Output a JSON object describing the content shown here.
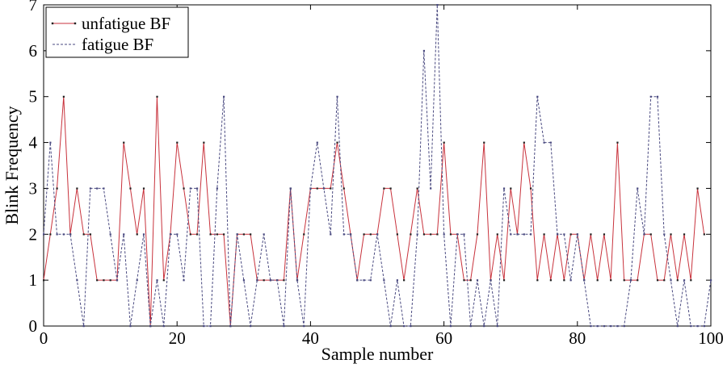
{
  "chart_data": {
    "type": "line",
    "title": "",
    "xlabel": "Sample number",
    "ylabel": "Blink Frequency",
    "xlim": [
      0,
      100
    ],
    "ylim": [
      0,
      7
    ],
    "grid": false,
    "legend_position": "top-left",
    "x_ticks": [
      0,
      20,
      40,
      60,
      80,
      100
    ],
    "y_ticks": [
      0,
      1,
      2,
      3,
      4,
      5,
      6,
      7
    ],
    "x_tick_labels": [
      "0",
      "20",
      "40",
      "60",
      "80",
      "100"
    ],
    "y_tick_labels": [
      "0",
      "1",
      "2",
      "3",
      "4",
      "5",
      "6",
      "7"
    ],
    "series": [
      {
        "name": "unfatigue BF",
        "style": "solid-marker",
        "color": "#c8323c",
        "marker_color": "#222222",
        "x": [
          0,
          1,
          2,
          3,
          4,
          5,
          6,
          7,
          8,
          9,
          10,
          11,
          12,
          13,
          14,
          15,
          16,
          17,
          18,
          19,
          20,
          21,
          22,
          23,
          24,
          25,
          26,
          27,
          28,
          29,
          30,
          31,
          32,
          33,
          34,
          35,
          36,
          37,
          38,
          39,
          40,
          41,
          42,
          43,
          44,
          45,
          46,
          47,
          48,
          49,
          50,
          51,
          52,
          53,
          54,
          55,
          56,
          57,
          58,
          59,
          60,
          61,
          62,
          63,
          64,
          65,
          66,
          67,
          68,
          69,
          70,
          71,
          72,
          73,
          74,
          75,
          76,
          77,
          78,
          79,
          80,
          81,
          82,
          83,
          84,
          85,
          86,
          87,
          88,
          89,
          90,
          91,
          92,
          93,
          94,
          95,
          96,
          97,
          98,
          99
        ],
        "values": [
          1,
          2,
          3,
          5,
          2,
          3,
          2,
          2,
          1,
          1,
          1,
          1,
          4,
          3,
          2,
          3,
          0,
          5,
          1,
          2,
          4,
          3,
          2,
          2,
          4,
          2,
          2,
          2,
          0,
          2,
          2,
          2,
          1,
          1,
          1,
          1,
          1,
          3,
          1,
          2,
          3,
          3,
          3,
          3,
          4,
          3,
          2,
          1,
          2,
          2,
          2,
          3,
          3,
          2,
          1,
          2,
          3,
          2,
          2,
          2,
          4,
          2,
          2,
          1,
          1,
          2,
          4,
          1,
          2,
          1,
          3,
          2,
          4,
          3,
          1,
          2,
          1,
          2,
          1,
          2,
          2,
          1,
          2,
          1,
          2,
          1,
          4,
          1,
          1,
          1,
          2,
          2,
          1,
          1,
          2,
          1,
          2,
          1,
          3,
          2
        ]
      },
      {
        "name": "fatigue BF",
        "style": "dashed",
        "color": "#4a4a80",
        "x": [
          0,
          1,
          2,
          3,
          4,
          5,
          6,
          7,
          8,
          9,
          10,
          11,
          12,
          13,
          14,
          15,
          16,
          17,
          18,
          19,
          20,
          21,
          22,
          23,
          24,
          25,
          26,
          27,
          28,
          29,
          30,
          31,
          32,
          33,
          34,
          35,
          36,
          37,
          38,
          39,
          40,
          41,
          42,
          43,
          44,
          45,
          46,
          47,
          48,
          49,
          50,
          51,
          52,
          53,
          54,
          55,
          56,
          57,
          58,
          59,
          60,
          61,
          62,
          63,
          64,
          65,
          66,
          67,
          68,
          69,
          70,
          71,
          72,
          73,
          74,
          75,
          76,
          77,
          78,
          79,
          80,
          81,
          82,
          83,
          84,
          85,
          86,
          87,
          88,
          89,
          90,
          91,
          92,
          93,
          94,
          95,
          96,
          97,
          98,
          99,
          100
        ],
        "values": [
          2,
          4,
          2,
          2,
          2,
          1,
          0,
          3,
          3,
          3,
          2,
          1,
          2,
          0,
          1,
          2,
          0,
          1,
          0,
          2,
          2,
          1,
          3,
          3,
          0,
          0,
          3,
          5,
          0,
          2,
          1,
          0,
          1,
          2,
          1,
          1,
          0,
          3,
          1,
          0,
          3,
          4,
          3,
          2,
          5,
          2,
          2,
          1,
          1,
          1,
          2,
          1,
          0,
          1,
          0,
          0,
          2,
          6,
          3,
          7,
          2,
          0,
          2,
          2,
          0,
          1,
          0,
          1,
          0,
          3,
          2,
          2,
          2,
          2,
          5,
          4,
          4,
          2,
          2,
          1,
          2,
          1,
          0,
          0,
          0,
          0,
          0,
          0,
          1,
          3,
          2,
          5,
          5,
          2,
          1,
          0,
          1,
          0,
          0,
          0,
          1
        ]
      }
    ]
  }
}
